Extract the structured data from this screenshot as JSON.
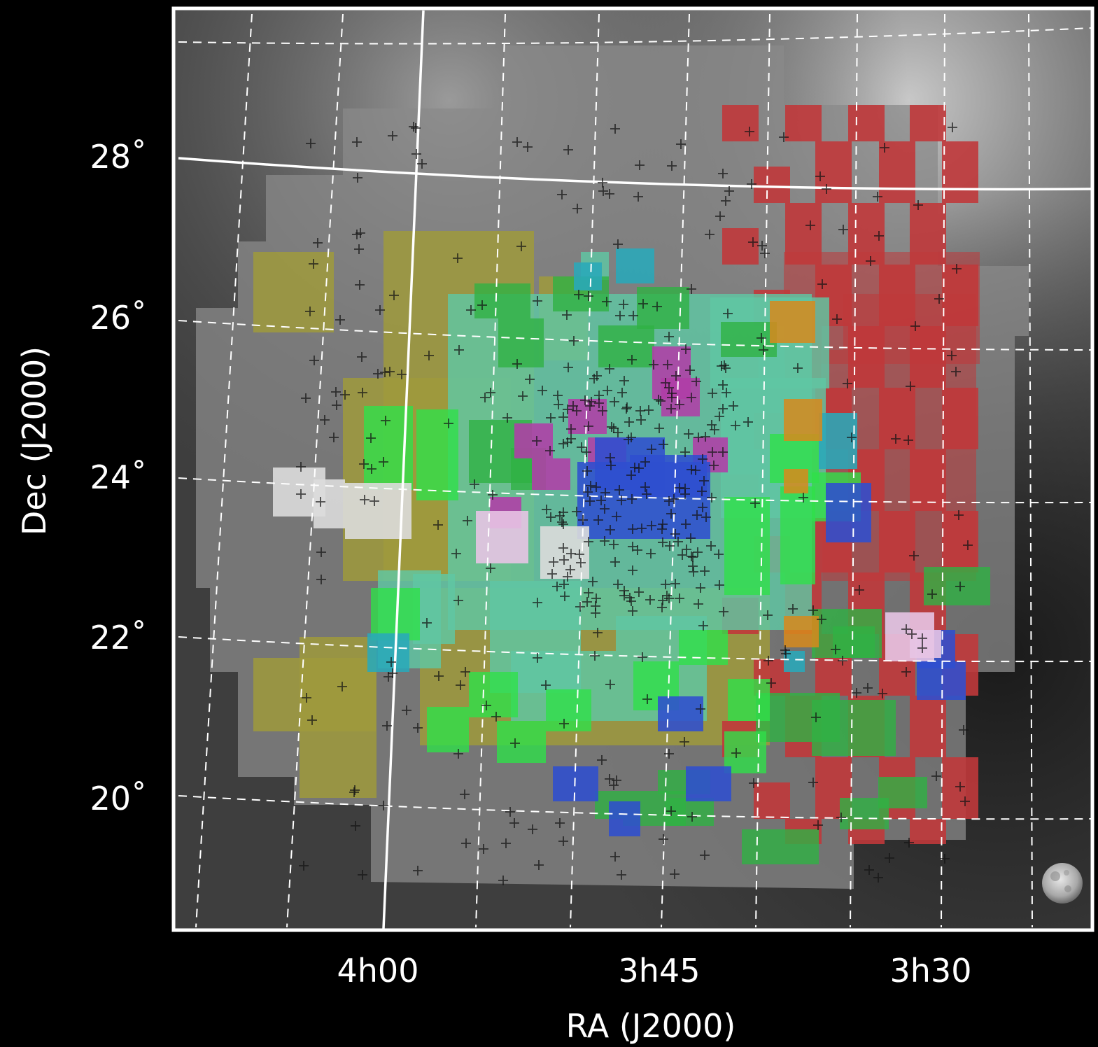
{
  "axes": {
    "ylabel": "Dec (J2000)",
    "xlabel": "RA (J2000)",
    "dec_ticks": [
      "28˚",
      "26˚",
      "24˚",
      "22˚",
      "20˚"
    ],
    "ra_ticks": [
      "4h00",
      "3h45",
      "3h30"
    ]
  },
  "colors": {
    "background": "#000000",
    "frame": "#ffffff",
    "red_survey": "#c0393b",
    "yellow_survey": "#9f9a3c",
    "teal_survey": "#5fc7a4",
    "green_survey": "#2fb143",
    "bright_green_survey": "#2fe04a",
    "magenta_survey": "#b03ea7",
    "blue_survey": "#2f4fcf",
    "cyan_survey": "#29a9b9",
    "orange_survey": "#d78a1c",
    "pink_survey": "#e7c4e4",
    "white_survey": "#dcdcdc"
  },
  "icons": [
    "moon-icon"
  ]
}
